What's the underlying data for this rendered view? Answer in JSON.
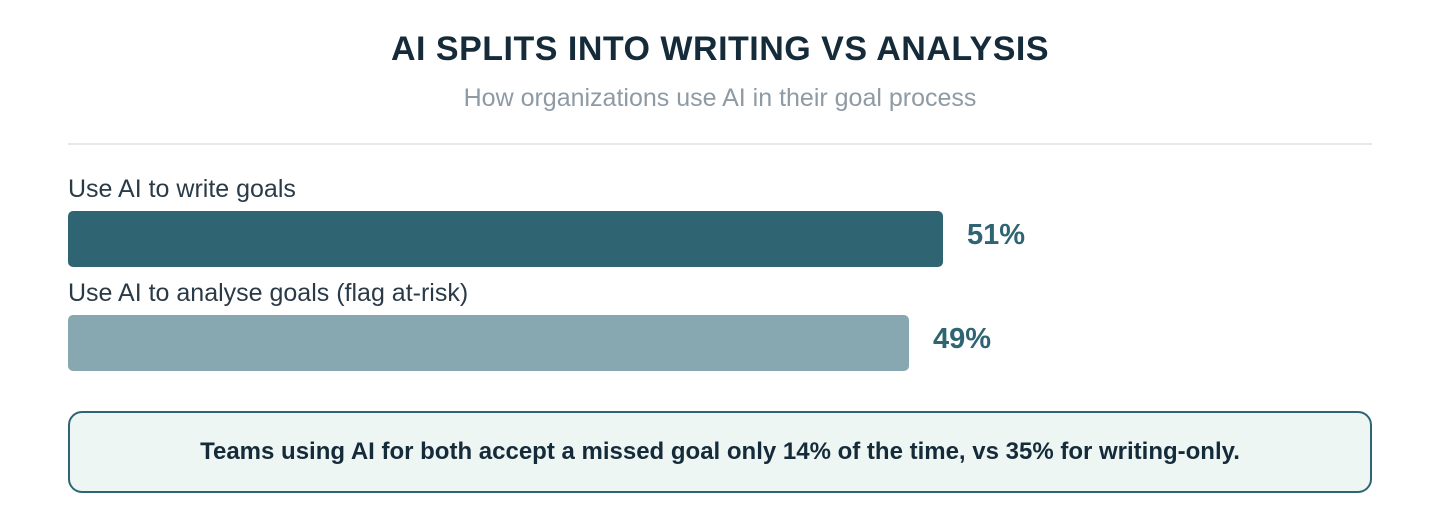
{
  "chart_data": {
    "type": "bar",
    "orientation": "horizontal",
    "title": "AI SPLITS INTO WRITING VS ANALYSIS",
    "subtitle": "How organizations use AI in their goal process",
    "categories": [
      "Use AI to write goals",
      "Use AI to analyse goals (flag at-risk)"
    ],
    "values": [
      51,
      49
    ],
    "value_labels": [
      "51%",
      "49%"
    ],
    "unit": "%",
    "xlim": [
      0,
      76
    ],
    "grid": false,
    "colors": [
      "#2f6573",
      "#88a8b1"
    ],
    "annotation": "Teams using AI for both accept a missed goal only 14% of the time, vs 35% for writing-only."
  },
  "colors": {
    "value_text": "#2f6573",
    "callout_border": "#2f6573",
    "callout_background": "#eef6f4"
  }
}
